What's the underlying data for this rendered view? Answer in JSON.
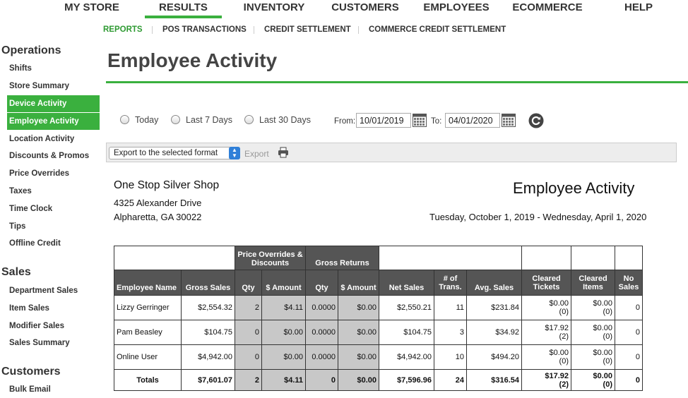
{
  "topnav": {
    "items": [
      {
        "label": "MY STORE"
      },
      {
        "label": "RESULTS"
      },
      {
        "label": "INVENTORY"
      },
      {
        "label": "CUSTOMERS"
      },
      {
        "label": "EMPLOYEES"
      },
      {
        "label": "ECOMMERCE"
      },
      {
        "label": "HELP"
      }
    ],
    "active": "RESULTS"
  },
  "subnav": {
    "items": [
      {
        "label": "REPORTS"
      },
      {
        "label": "POS TRANSACTIONS"
      },
      {
        "label": "CREDIT SETTLEMENT"
      },
      {
        "label": "COMMERCE CREDIT SETTLEMENT"
      }
    ],
    "active": "REPORTS"
  },
  "sidebar": {
    "operations_title": "Operations",
    "operations": [
      "Shifts",
      "Store Summary",
      "Device Activity",
      "Employee Activity",
      "Location Activity",
      "Discounts & Promos",
      "Price Overrides",
      "Taxes",
      "Time Clock",
      "Tips",
      "Offline Credit"
    ],
    "sales_title": "Sales",
    "sales": [
      "Department Sales",
      "Item Sales",
      "Modifier Sales",
      "Sales Summary"
    ],
    "customers_title": "Customers",
    "customers": [
      "Bulk Email"
    ],
    "active_items": [
      "Device Activity",
      "Employee Activity"
    ]
  },
  "page": {
    "title": "Employee Activity"
  },
  "filters": {
    "options": [
      "Today",
      "Last 7 Days",
      "Last 30 Days"
    ],
    "from_label": "From:",
    "from_value": "10/01/2019",
    "to_label": "To:",
    "to_value": "04/01/2020"
  },
  "export": {
    "select_value": "Export to the selected format",
    "button_label": "Export"
  },
  "report": {
    "store_name": "One Stop Silver Shop",
    "address_line1": "4325 Alexander Drive",
    "address_line2": "Alpharetta, GA 30022",
    "title": "Employee Activity",
    "date_range": "Tuesday, October 1, 2019 - Wednesday, April 1, 2020"
  },
  "table": {
    "group_headers": {
      "price_overrides": "Price Overrides & Discounts",
      "gross_returns": "Gross Returns"
    },
    "columns": {
      "employee_name": "Employee Name",
      "gross_sales": "Gross Sales",
      "po_qty": "Qty",
      "po_amount": "$ Amount",
      "gr_qty": "Qty",
      "gr_amount": "$ Amount",
      "net_sales": "Net Sales",
      "num_trans": "# of Trans.",
      "avg_sales": "Avg. Sales",
      "cleared_tickets": "Cleared Tickets",
      "cleared_items": "Cleared Items",
      "no_sales": "No Sales"
    },
    "rows": [
      {
        "name": "Lizzy Gerringer",
        "gross": "$2,554.32",
        "po_qty": "2",
        "po_amt": "$4.11",
        "gr_qty": "0.0000",
        "gr_amt": "$0.00",
        "net": "$2,550.21",
        "trans": "11",
        "avg": "$231.84",
        "ct_amt": "$0.00",
        "ct_cnt": "(0)",
        "ci_amt": "$0.00",
        "ci_cnt": "(0)",
        "no_sales": "0"
      },
      {
        "name": "Pam Beasley",
        "gross": "$104.75",
        "po_qty": "0",
        "po_amt": "$0.00",
        "gr_qty": "0.0000",
        "gr_amt": "$0.00",
        "net": "$104.75",
        "trans": "3",
        "avg": "$34.92",
        "ct_amt": "$17.92",
        "ct_cnt": "(2)",
        "ci_amt": "$0.00",
        "ci_cnt": "(0)",
        "no_sales": "0"
      },
      {
        "name": "Online User",
        "gross": "$4,942.00",
        "po_qty": "0",
        "po_amt": "$0.00",
        "gr_qty": "0.0000",
        "gr_amt": "$0.00",
        "net": "$4,942.00",
        "trans": "10",
        "avg": "$494.20",
        "ct_amt": "$0.00",
        "ct_cnt": "(0)",
        "ci_amt": "$0.00",
        "ci_cnt": "(0)",
        "no_sales": "0"
      }
    ],
    "totals": {
      "name": "Totals",
      "gross": "$7,601.07",
      "po_qty": "2",
      "po_amt": "$4.11",
      "gr_qty": "0",
      "gr_amt": "$0.00",
      "net": "$7,596.96",
      "trans": "24",
      "avg": "$316.54",
      "ct_amt": "$17.92",
      "ct_cnt": "(2)",
      "ci_amt": "$0.00",
      "ci_cnt": "(0)",
      "no_sales": "0"
    }
  },
  "colors": {
    "accent": "#3ab03e",
    "header_gray": "#555555",
    "cell_gray": "#c8c8c8"
  },
  "icons": {
    "calendar": "calendar-icon",
    "refresh": "refresh-icon",
    "print": "printer-icon"
  }
}
